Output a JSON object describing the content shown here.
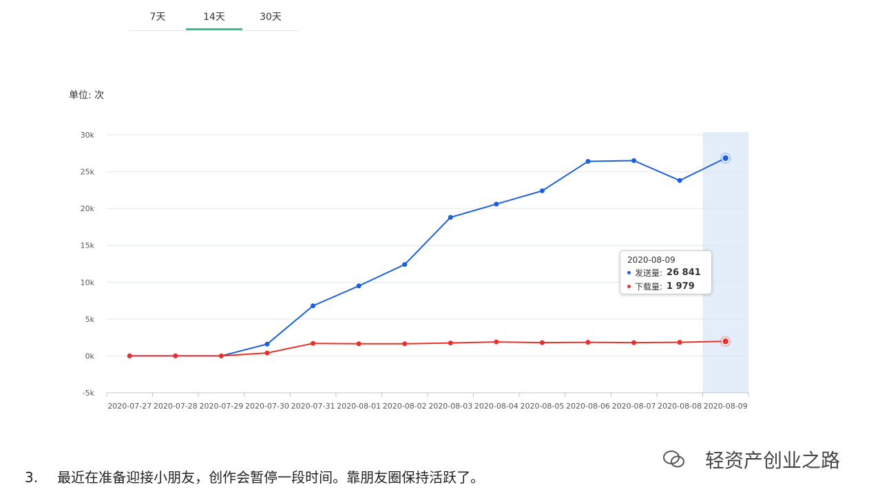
{
  "tabs": [
    {
      "label": "7天",
      "active": false
    },
    {
      "label": "14天",
      "active": true
    },
    {
      "label": "30天",
      "active": false
    }
  ],
  "unit_label": "单位: 次",
  "tooltip": {
    "date": "2020-08-09",
    "rows": [
      {
        "label": "发送量:",
        "value": "26 841",
        "color": "#1a5fe0"
      },
      {
        "label": "下载量:",
        "value": "1 979",
        "color": "#e8302a"
      }
    ]
  },
  "footer": {
    "number": "3.",
    "text": "最近在准备迎接小朋友，创作会暂停一段时间。靠朋友圈保持活跃了。"
  },
  "watermark": {
    "icon": "wechat-icon",
    "text": "轻资产创业之路"
  },
  "chart_data": {
    "type": "line",
    "categories": [
      "2020-07-27",
      "2020-07-28",
      "2020-07-29",
      "2020-07-30",
      "2020-07-31",
      "2020-08-01",
      "2020-08-02",
      "2020-08-03",
      "2020-08-04",
      "2020-08-05",
      "2020-08-06",
      "2020-08-07",
      "2020-08-08",
      "2020-08-09"
    ],
    "series": [
      {
        "name": "发送量",
        "color": "#1a5fe0",
        "values": [
          0,
          0,
          0,
          1600,
          6800,
          9500,
          12400,
          18800,
          20600,
          22400,
          26400,
          26500,
          23800,
          26841
        ]
      },
      {
        "name": "下载量",
        "color": "#e8302a",
        "values": [
          0,
          0,
          0,
          400,
          1700,
          1650,
          1650,
          1750,
          1900,
          1800,
          1850,
          1800,
          1850,
          1979
        ]
      }
    ],
    "ylim": [
      -5000,
      30000
    ],
    "yticks": [
      {
        "v": 30000,
        "label": "30k"
      },
      {
        "v": 25000,
        "label": "25k"
      },
      {
        "v": 20000,
        "label": "20k"
      },
      {
        "v": 15000,
        "label": "15k"
      },
      {
        "v": 10000,
        "label": "10k"
      },
      {
        "v": 5000,
        "label": "5k"
      },
      {
        "v": 0,
        "label": "0k"
      },
      {
        "v": -5000,
        "label": "-5k"
      }
    ],
    "grid": true,
    "highlight_category": "2020-08-09"
  }
}
